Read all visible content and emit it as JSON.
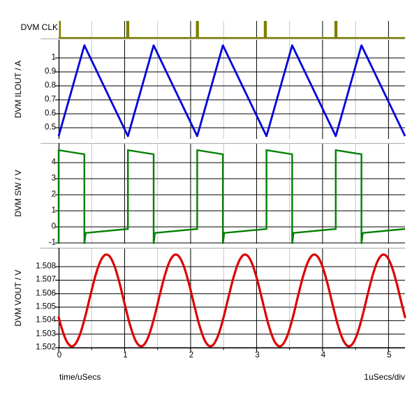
{
  "chart_data": {
    "type": "line",
    "title": "",
    "x_axis": {
      "title": "time/uSecs",
      "scale_label": "1uSecs/div",
      "range": [
        0,
        5.25
      ],
      "major_ticks": [
        0,
        1,
        2,
        3,
        4,
        5
      ],
      "major_tick_labels": [
        "0",
        "1",
        "2",
        "3",
        "4",
        "5"
      ],
      "minor_ticks": [
        0.5,
        1.5,
        2.5,
        3.5,
        4.5
      ],
      "grid": "on"
    },
    "panels": [
      {
        "id": "clk",
        "label": "DVM CLK",
        "color": "#7e7e00",
        "waveform": "pulse-train",
        "levels": {
          "low": 0,
          "high": 1
        },
        "pulses": [
          [
            0.005,
            0.032
          ],
          [
            1.025,
            1.07
          ],
          [
            2.08,
            2.125
          ],
          [
            3.11,
            3.155
          ],
          [
            4.18,
            4.225
          ]
        ]
      },
      {
        "id": "ilout",
        "label": "DVM ILOUT / A",
        "color": "#0000dd",
        "waveform": "polyline",
        "ylim": [
          0.42,
          1.13
        ],
        "y_ticks": [
          1,
          0.9,
          0.8,
          0.7,
          0.6,
          0.5
        ],
        "y_tick_labels": [
          "1",
          "0.9",
          "0.8",
          "0.7",
          "0.6",
          "0.5"
        ],
        "points": [
          [
            0,
            0.44
          ],
          [
            0.39,
            1.09
          ],
          [
            1.05,
            0.44
          ],
          [
            1.44,
            1.09
          ],
          [
            2.1,
            0.44
          ],
          [
            2.49,
            1.09
          ],
          [
            3.15,
            0.44
          ],
          [
            3.54,
            1.09
          ],
          [
            4.2,
            0.44
          ],
          [
            4.59,
            1.09
          ],
          [
            5.25,
            0.44
          ]
        ]
      },
      {
        "id": "sw",
        "label": "DVM SW / V",
        "color": "#008000",
        "waveform": "polyline",
        "ylim": [
          -1.043,
          5.217
        ],
        "y_ticks": [
          4,
          3,
          2,
          1,
          0,
          -1
        ],
        "y_tick_labels": [
          "4",
          "3",
          "2",
          "1",
          "0",
          "-1"
        ],
        "points": [
          [
            0,
            -1.05
          ],
          [
            0,
            4.78
          ],
          [
            0.39,
            4.52
          ],
          [
            0.39,
            -1.05
          ],
          [
            0.41,
            -0.38
          ],
          [
            1.05,
            -0.13
          ],
          [
            1.05,
            4.78
          ],
          [
            1.44,
            4.52
          ],
          [
            1.44,
            -1.05
          ],
          [
            1.46,
            -0.38
          ],
          [
            2.1,
            -0.13
          ],
          [
            2.1,
            4.78
          ],
          [
            2.49,
            4.52
          ],
          [
            2.49,
            -1.05
          ],
          [
            2.51,
            -0.38
          ],
          [
            3.15,
            -0.13
          ],
          [
            3.15,
            4.78
          ],
          [
            3.54,
            4.52
          ],
          [
            3.54,
            -1.05
          ],
          [
            3.56,
            -0.38
          ],
          [
            4.2,
            -0.13
          ],
          [
            4.2,
            4.78
          ],
          [
            4.59,
            4.52
          ],
          [
            4.59,
            -1.05
          ],
          [
            4.61,
            -0.38
          ],
          [
            5.25,
            -0.13
          ]
        ]
      },
      {
        "id": "vout",
        "label": "DVM VOUT / V",
        "color": "#dd0000",
        "waveform": "sine",
        "ylim": [
          1.502,
          1.5094
        ],
        "y_ticks": [
          1.508,
          1.507,
          1.506,
          1.505,
          1.504,
          1.503,
          1.502
        ],
        "y_tick_labels": [
          "1.508",
          "1.507",
          "1.506",
          "1.505",
          "1.504",
          "1.503",
          "1.502"
        ],
        "sine": {
          "center": 1.5055,
          "amplitude": 0.0034,
          "period": 1.05,
          "t_of_first_min": 0.2
        }
      }
    ],
    "colors": {
      "grid_major": "#000000",
      "grid_minor": "#c6c6c6",
      "separator": "#b4b4b4",
      "background": "#ffffff"
    }
  }
}
